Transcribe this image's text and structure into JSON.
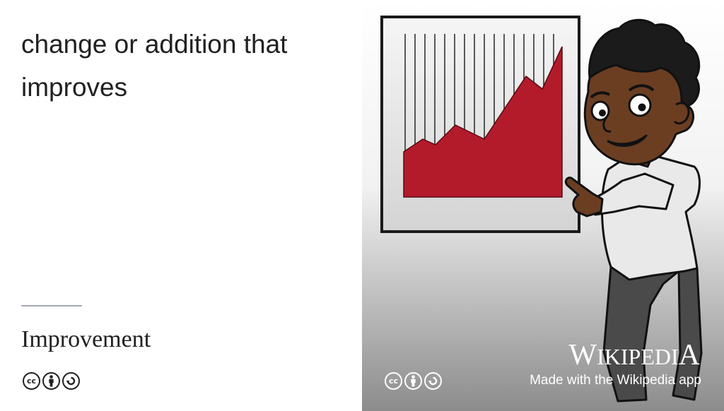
{
  "card": {
    "definition": "change or addition that improves",
    "term": "Improvement"
  },
  "license": {
    "icons": [
      "cc-icon",
      "attribution-icon",
      "share-alike-icon"
    ],
    "cc_text": "cc"
  },
  "branding": {
    "wordmark_W": "W",
    "wordmark_rest": "IKIPEDI",
    "wordmark_A": "A",
    "tagline": "Made with the Wikipedia app"
  },
  "illustration": {
    "subject": "cartoon man pointing at rising chart",
    "chart_color": "#b31b2b",
    "background_top": "#ffffff",
    "background_bottom": "#8c8c8c"
  }
}
